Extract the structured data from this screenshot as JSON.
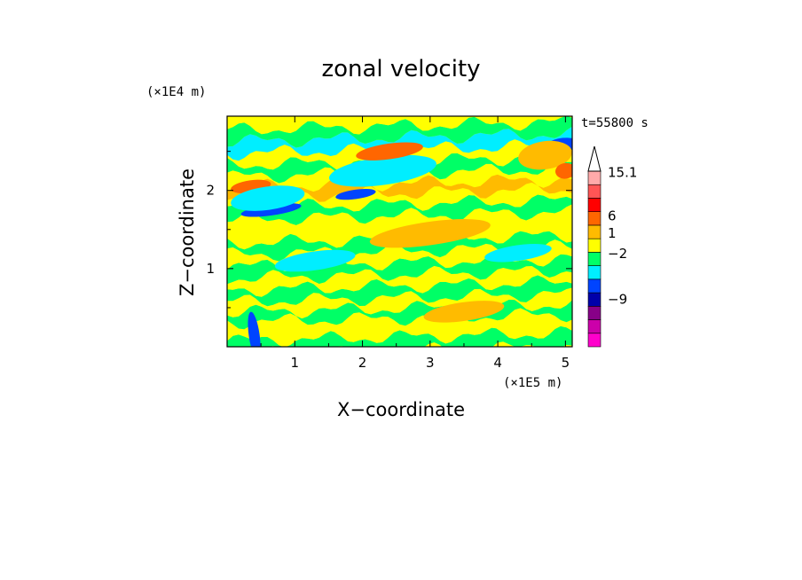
{
  "chart_data": {
    "type": "heatmap",
    "title": "zonal velocity",
    "xlabel": "X−coordinate",
    "ylabel": "Z−coordinate",
    "x_scale_label": "(×1E5 m)",
    "y_scale_label": "(×1E4 m)",
    "time_label": "t=55800 s",
    "xlim": [
      0,
      5.1
    ],
    "ylim": [
      0,
      2.95
    ],
    "x_ticks": [
      {
        "value": 1,
        "label": "1"
      },
      {
        "value": 2,
        "label": "2"
      },
      {
        "value": 3,
        "label": "3"
      },
      {
        "value": 4,
        "label": "4"
      },
      {
        "value": 5,
        "label": "5"
      }
    ],
    "y_ticks": [
      {
        "value": 1,
        "label": "1"
      },
      {
        "value": 2,
        "label": "2"
      }
    ],
    "colorbar": {
      "levels": [
        {
          "color": "#ff00cc"
        },
        {
          "color": "#cc00aa"
        },
        {
          "color": "#880088"
        },
        {
          "color": "#0000aa"
        },
        {
          "color": "#0044ff"
        },
        {
          "color": "#00eeff"
        },
        {
          "color": "#00ff66"
        },
        {
          "color": "#ffff00"
        },
        {
          "color": "#ffbb00"
        },
        {
          "color": "#ff6600"
        },
        {
          "color": "#ff0000"
        },
        {
          "color": "#ff5555"
        },
        {
          "color": "#ffaaaa"
        }
      ],
      "labels": [
        {
          "text": "15.1",
          "level": 12.9
        },
        {
          "text": "6",
          "level": 9.7
        },
        {
          "text": "1",
          "level": 8.4
        },
        {
          "text": "−2",
          "level": 6.9
        },
        {
          "text": "−9",
          "level": 3.5
        }
      ]
    },
    "field_bands": [
      {
        "z": 0.03,
        "level": 6
      },
      {
        "z": 0.12,
        "level": 7
      },
      {
        "z": 0.25,
        "level": 7
      },
      {
        "z": 0.38,
        "level": 6
      },
      {
        "z": 0.5,
        "level": 7
      },
      {
        "z": 0.65,
        "level": 6
      },
      {
        "z": 0.8,
        "level": 7
      },
      {
        "z": 0.95,
        "level": 6
      },
      {
        "z": 1.1,
        "level": 7
      },
      {
        "z": 1.25,
        "level": 6
      },
      {
        "z": 1.4,
        "level": 7
      },
      {
        "z": 1.55,
        "level": 7
      },
      {
        "z": 1.7,
        "level": 6
      },
      {
        "z": 1.85,
        "level": 7
      },
      {
        "z": 1.98,
        "level": 8
      },
      {
        "z": 2.1,
        "level": 7
      },
      {
        "z": 2.25,
        "level": 6
      },
      {
        "z": 2.4,
        "level": 7
      },
      {
        "z": 2.55,
        "level": 5
      },
      {
        "z": 2.7,
        "level": 6
      },
      {
        "z": 2.85,
        "level": 7
      }
    ],
    "features": [
      {
        "x": 0.35,
        "z": 2.05,
        "rx": 0.3,
        "rz": 0.08,
        "level": 9
      },
      {
        "x": 0.65,
        "z": 1.75,
        "rx": 0.45,
        "rz": 0.07,
        "level": 4
      },
      {
        "x": 0.6,
        "z": 1.9,
        "rx": 0.55,
        "rz": 0.15,
        "level": 5
      },
      {
        "x": 1.9,
        "z": 1.95,
        "rx": 0.3,
        "rz": 0.06,
        "level": 4
      },
      {
        "x": 2.3,
        "z": 2.25,
        "rx": 0.8,
        "rz": 0.18,
        "level": 5
      },
      {
        "x": 2.4,
        "z": 2.5,
        "rx": 0.5,
        "rz": 0.1,
        "level": 9
      },
      {
        "x": 4.95,
        "z": 2.58,
        "rx": 0.25,
        "rz": 0.09,
        "level": 4
      },
      {
        "x": 4.7,
        "z": 2.45,
        "rx": 0.4,
        "rz": 0.18,
        "level": 8
      },
      {
        "x": 5.0,
        "z": 2.25,
        "rx": 0.15,
        "rz": 0.1,
        "level": 9
      },
      {
        "x": 1.3,
        "z": 1.1,
        "rx": 0.6,
        "rz": 0.12,
        "level": 5
      },
      {
        "x": 4.3,
        "z": 1.2,
        "rx": 0.5,
        "rz": 0.1,
        "level": 5
      },
      {
        "x": 3.0,
        "z": 1.45,
        "rx": 0.9,
        "rz": 0.15,
        "level": 8
      },
      {
        "x": 3.5,
        "z": 0.45,
        "rx": 0.6,
        "rz": 0.12,
        "level": 8
      },
      {
        "x": 0.4,
        "z": 0.15,
        "rx": 0.08,
        "rz": 0.3,
        "level": 4
      }
    ]
  }
}
